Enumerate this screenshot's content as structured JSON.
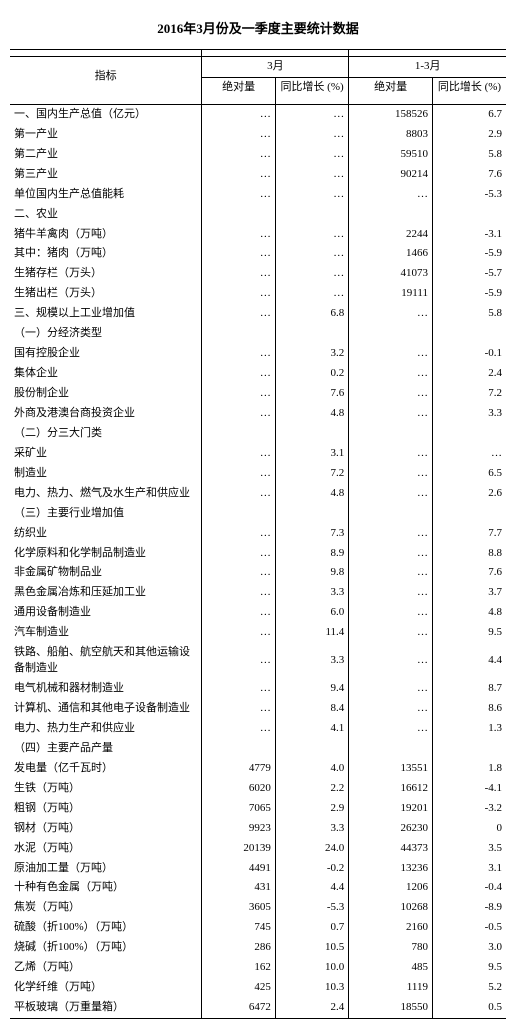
{
  "title": "2016年3月份及一季度主要统计数据",
  "header": {
    "indicator": "指标",
    "group1": "3月",
    "group2": "1-3月",
    "abs": "绝对量",
    "yoy": "同比增长\n(%)"
  },
  "rows": [
    {
      "label": "一、国内生产总值（亿元）",
      "m_abs": "…",
      "m_yoy": "…",
      "q_abs": "158526",
      "q_yoy": "6.7"
    },
    {
      "label": "第一产业",
      "m_abs": "…",
      "m_yoy": "…",
      "q_abs": "8803",
      "q_yoy": "2.9"
    },
    {
      "label": "第二产业",
      "m_abs": "…",
      "m_yoy": "…",
      "q_abs": "59510",
      "q_yoy": "5.8"
    },
    {
      "label": "第三产业",
      "m_abs": "…",
      "m_yoy": "…",
      "q_abs": "90214",
      "q_yoy": "7.6"
    },
    {
      "label": "单位国内生产总值能耗",
      "m_abs": "…",
      "m_yoy": "…",
      "q_abs": "…",
      "q_yoy": "-5.3"
    },
    {
      "label": "二、农业",
      "m_abs": "",
      "m_yoy": "",
      "q_abs": "",
      "q_yoy": ""
    },
    {
      "label": "猪牛羊禽肉（万吨）",
      "m_abs": "…",
      "m_yoy": "…",
      "q_abs": "2244",
      "q_yoy": "-3.1"
    },
    {
      "label": "  其中：猪肉（万吨）",
      "m_abs": "…",
      "m_yoy": "…",
      "q_abs": "1466",
      "q_yoy": "-5.9"
    },
    {
      "label": "生猪存栏（万头）",
      "m_abs": "…",
      "m_yoy": "…",
      "q_abs": "41073",
      "q_yoy": "-5.7"
    },
    {
      "label": "生猪出栏（万头）",
      "m_abs": "…",
      "m_yoy": "…",
      "q_abs": "19111",
      "q_yoy": "-5.9"
    },
    {
      "label": "三、规模以上工业增加值",
      "m_abs": "…",
      "m_yoy": "6.8",
      "q_abs": "…",
      "q_yoy": "5.8"
    },
    {
      "label": "（一）分经济类型",
      "m_abs": "",
      "m_yoy": "",
      "q_abs": "",
      "q_yoy": ""
    },
    {
      "label": "国有控股企业",
      "m_abs": "…",
      "m_yoy": "3.2",
      "q_abs": "…",
      "q_yoy": "-0.1"
    },
    {
      "label": "集体企业",
      "m_abs": "…",
      "m_yoy": "0.2",
      "q_abs": "…",
      "q_yoy": "2.4"
    },
    {
      "label": "股份制企业",
      "m_abs": "…",
      "m_yoy": "7.6",
      "q_abs": "…",
      "q_yoy": "7.2"
    },
    {
      "label": "外商及港澳台商投资企业",
      "m_abs": "…",
      "m_yoy": "4.8",
      "q_abs": "…",
      "q_yoy": "3.3"
    },
    {
      "label": "（二）分三大门类",
      "m_abs": "",
      "m_yoy": "",
      "q_abs": "",
      "q_yoy": ""
    },
    {
      "label": "采矿业",
      "m_abs": "…",
      "m_yoy": "3.1",
      "q_abs": "…",
      "q_yoy": "…"
    },
    {
      "label": "制造业",
      "m_abs": "…",
      "m_yoy": "7.2",
      "q_abs": "…",
      "q_yoy": "6.5"
    },
    {
      "label": "电力、热力、燃气及水生产和供应业",
      "m_abs": "…",
      "m_yoy": "4.8",
      "q_abs": "…",
      "q_yoy": "2.6"
    },
    {
      "label": "（三）主要行业增加值",
      "m_abs": "",
      "m_yoy": "",
      "q_abs": "",
      "q_yoy": ""
    },
    {
      "label": "纺织业",
      "m_abs": "…",
      "m_yoy": "7.3",
      "q_abs": "…",
      "q_yoy": "7.7"
    },
    {
      "label": "化学原料和化学制品制造业",
      "m_abs": "…",
      "m_yoy": "8.9",
      "q_abs": "…",
      "q_yoy": "8.8"
    },
    {
      "label": "非金属矿物制品业",
      "m_abs": "…",
      "m_yoy": "9.8",
      "q_abs": "…",
      "q_yoy": "7.6"
    },
    {
      "label": "黑色金属冶炼和压延加工业",
      "m_abs": "…",
      "m_yoy": "3.3",
      "q_abs": "…",
      "q_yoy": "3.7"
    },
    {
      "label": "通用设备制造业",
      "m_abs": "…",
      "m_yoy": "6.0",
      "q_abs": "…",
      "q_yoy": "4.8"
    },
    {
      "label": "汽车制造业",
      "m_abs": "…",
      "m_yoy": "11.4",
      "q_abs": "…",
      "q_yoy": "9.5"
    },
    {
      "label": "铁路、船舶、航空航天和其他运输设备制造业",
      "m_abs": "…",
      "m_yoy": "3.3",
      "q_abs": "…",
      "q_yoy": "4.4"
    },
    {
      "label": "电气机械和器材制造业",
      "m_abs": "…",
      "m_yoy": "9.4",
      "q_abs": "…",
      "q_yoy": "8.7"
    },
    {
      "label": "计算机、通信和其他电子设备制造业",
      "m_abs": "…",
      "m_yoy": "8.4",
      "q_abs": "…",
      "q_yoy": "8.6"
    },
    {
      "label": "电力、热力生产和供应业",
      "m_abs": "…",
      "m_yoy": "4.1",
      "q_abs": "…",
      "q_yoy": "1.3"
    },
    {
      "label": "（四）主要产品产量",
      "m_abs": "",
      "m_yoy": "",
      "q_abs": "",
      "q_yoy": ""
    },
    {
      "label": "发电量（亿千瓦时）",
      "m_abs": "4779",
      "m_yoy": "4.0",
      "q_abs": "13551",
      "q_yoy": "1.8"
    },
    {
      "label": "生铁（万吨）",
      "m_abs": "6020",
      "m_yoy": "2.2",
      "q_abs": "16612",
      "q_yoy": "-4.1"
    },
    {
      "label": "粗钢（万吨）",
      "m_abs": "7065",
      "m_yoy": "2.9",
      "q_abs": "19201",
      "q_yoy": "-3.2"
    },
    {
      "label": "钢材（万吨）",
      "m_abs": "9923",
      "m_yoy": "3.3",
      "q_abs": "26230",
      "q_yoy": "0"
    },
    {
      "label": "水泥（万吨）",
      "m_abs": "20139",
      "m_yoy": "24.0",
      "q_abs": "44373",
      "q_yoy": "3.5"
    },
    {
      "label": "原油加工量（万吨）",
      "m_abs": "4491",
      "m_yoy": "-0.2",
      "q_abs": "13236",
      "q_yoy": "3.1"
    },
    {
      "label": "十种有色金属（万吨）",
      "m_abs": "431",
      "m_yoy": "4.4",
      "q_abs": "1206",
      "q_yoy": "-0.4"
    },
    {
      "label": "焦炭（万吨）",
      "m_abs": "3605",
      "m_yoy": "-5.3",
      "q_abs": "10268",
      "q_yoy": "-8.9"
    },
    {
      "label": "硫酸（折100%）（万吨）",
      "m_abs": "745",
      "m_yoy": "0.7",
      "q_abs": "2160",
      "q_yoy": "-0.5"
    },
    {
      "label": "烧碱（折100%）（万吨）",
      "m_abs": "286",
      "m_yoy": "10.5",
      "q_abs": "780",
      "q_yoy": "3.0"
    },
    {
      "label": "乙烯（万吨）",
      "m_abs": "162",
      "m_yoy": "10.0",
      "q_abs": "485",
      "q_yoy": "9.5"
    },
    {
      "label": "化学纤维（万吨）",
      "m_abs": "425",
      "m_yoy": "10.3",
      "q_abs": "1119",
      "q_yoy": "5.2"
    },
    {
      "label": "平板玻璃（万重量箱）",
      "m_abs": "6472",
      "m_yoy": "2.4",
      "q_abs": "18550",
      "q_yoy": "0.5"
    }
  ]
}
